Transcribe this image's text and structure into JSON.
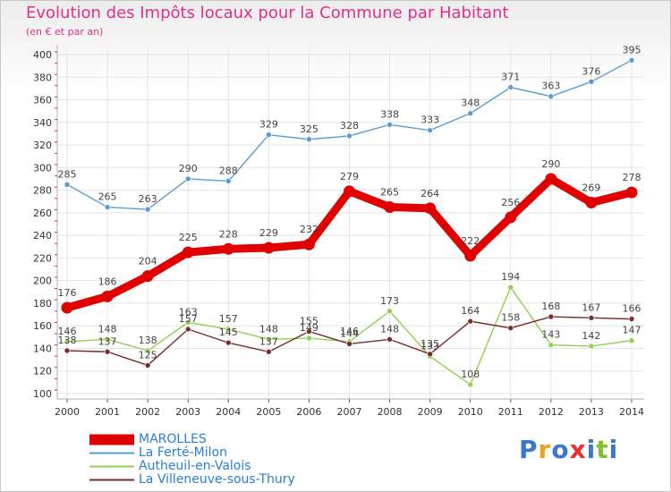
{
  "title": "Evolution des Impôts locaux pour la Commune par Habitant",
  "subtitle": "(en € et par an)",
  "logo": {
    "text": "Proxiti",
    "colors": [
      "#3a78c9",
      "#f0a020",
      "#3a78c9",
      "#e83030",
      "#3a78c9",
      "#80c030",
      "#3a78c9"
    ]
  },
  "chart_data": {
    "type": "line",
    "x": [
      "2000",
      "2001",
      "2002",
      "2003",
      "2004",
      "2005",
      "2006",
      "2007",
      "2008",
      "2009",
      "2010",
      "2011",
      "2012",
      "2013",
      "2014"
    ],
    "ylim": [
      100,
      400
    ],
    "yticks": [
      "100",
      "120",
      "140",
      "160",
      "180",
      "200",
      "220",
      "240",
      "260",
      "280",
      "300",
      "320",
      "340",
      "360",
      "380",
      "400"
    ],
    "grid": true,
    "legend_placement": "bottom-left",
    "series": [
      {
        "name": "MAROLLES",
        "color": "#e00000",
        "emphasis": true,
        "values": [
          176,
          186,
          204,
          225,
          228,
          229,
          232,
          279,
          265,
          264,
          222,
          256,
          290,
          269,
          278
        ],
        "labels": [
          "176",
          "186",
          "204",
          "225",
          "228",
          "229",
          "232",
          "279",
          "265",
          "264",
          "222",
          "256",
          "290",
          "269",
          "278"
        ]
      },
      {
        "name": "La Ferté-Milon",
        "color": "#5b9bd5",
        "emphasis": false,
        "values": [
          285,
          265,
          263,
          290,
          288,
          329,
          325,
          328,
          338,
          333,
          348,
          371,
          363,
          376,
          395
        ],
        "labels": [
          "285",
          "265",
          "263",
          "290",
          "288",
          "329",
          "325",
          "328",
          "338",
          "333",
          "348",
          "371",
          "363",
          "376",
          "395"
        ]
      },
      {
        "name": "Autheuil-en-Valois",
        "color": "#92d050",
        "emphasis": false,
        "values": [
          146,
          148,
          138,
          163,
          157,
          148,
          149,
          146,
          173,
          133,
          108,
          194,
          143,
          142,
          147
        ],
        "labels": [
          "146",
          "148",
          "138",
          "163",
          "157",
          "148",
          "149",
          "146",
          "173",
          "133",
          "108",
          "194",
          "143",
          "142",
          "147"
        ]
      },
      {
        "name": "La Villeneuve-sous-Thury",
        "color": "#7b2c2c",
        "emphasis": false,
        "values": [
          138,
          137,
          125,
          157,
          145,
          137,
          155,
          144,
          148,
          135,
          164,
          158,
          168,
          167,
          166
        ],
        "labels": [
          "138",
          "137",
          "125",
          "157",
          "145",
          "137",
          "155",
          "144",
          "148",
          "135",
          "164",
          "158",
          "168",
          "167",
          "166"
        ]
      }
    ]
  }
}
